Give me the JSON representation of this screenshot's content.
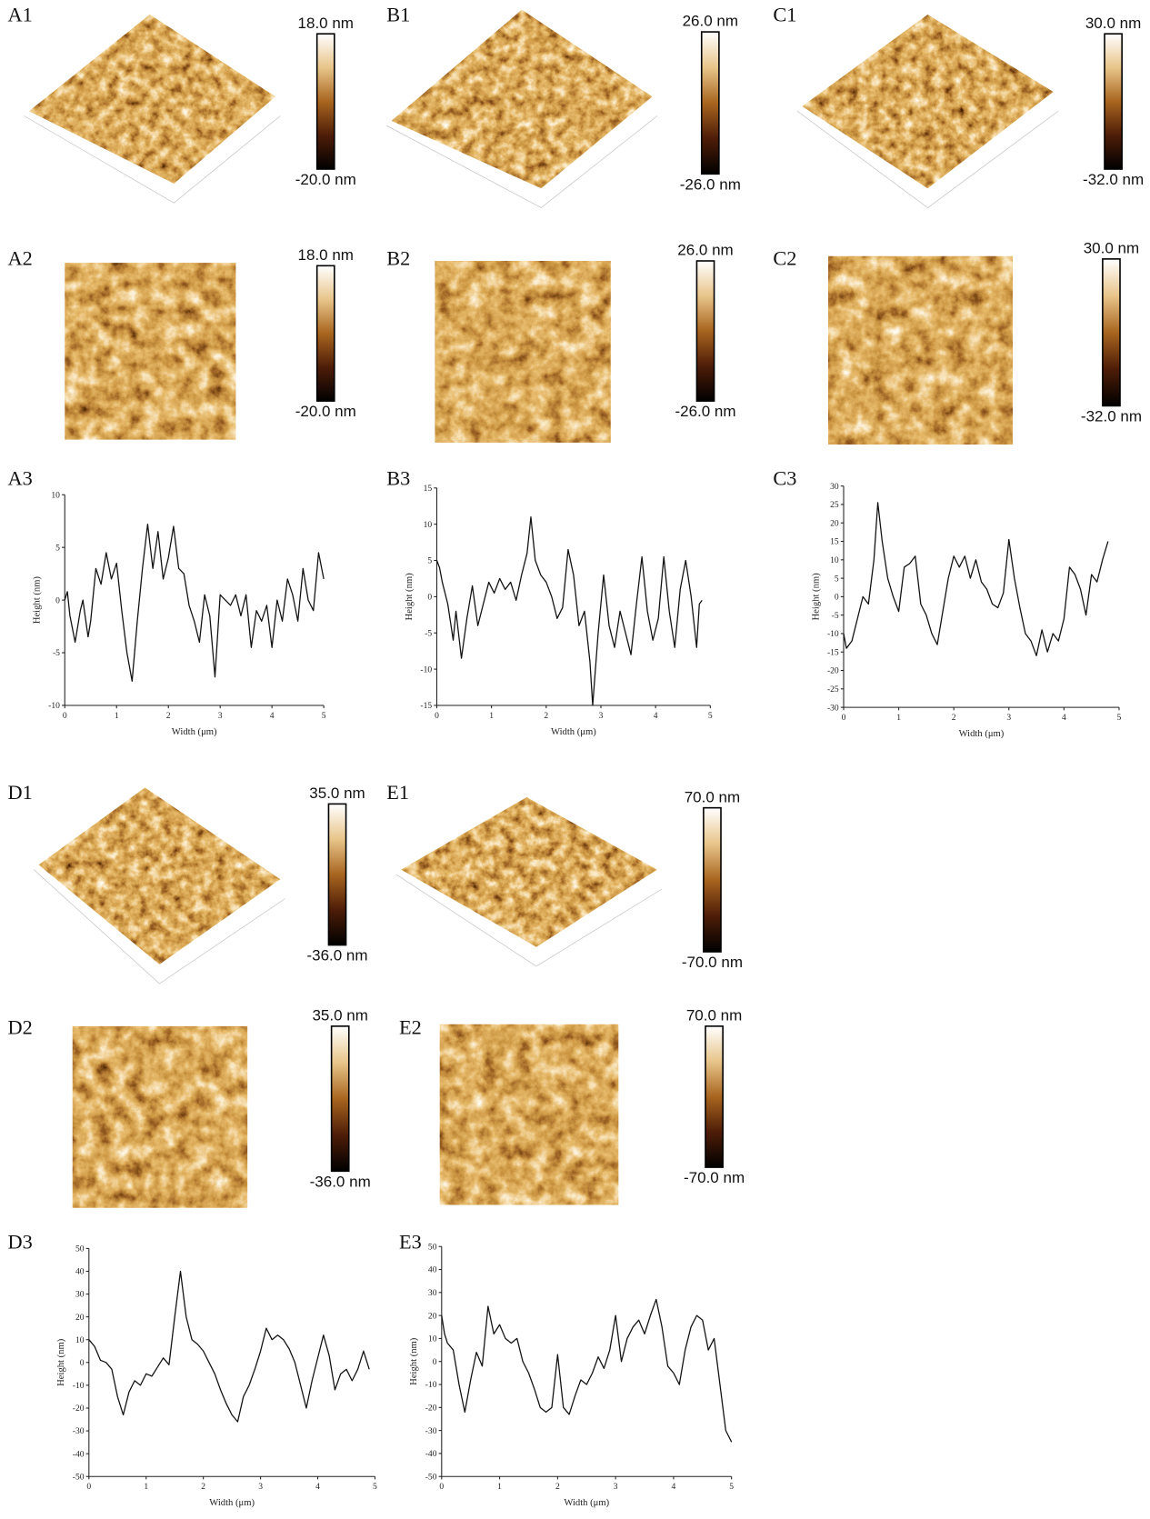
{
  "panels": [
    {
      "label": "A1",
      "kind": "3d",
      "scale_max": "18.0 nm",
      "scale_min": "-20.0 nm"
    },
    {
      "label": "B1",
      "kind": "3d",
      "scale_max": "26.0 nm",
      "scale_min": "-26.0 nm"
    },
    {
      "label": "C1",
      "kind": "3d",
      "scale_max": "30.0 nm",
      "scale_min": "-32.0 nm"
    },
    {
      "label": "A2",
      "kind": "2d",
      "scale_max": "18.0 nm",
      "scale_min": "-20.0 nm"
    },
    {
      "label": "B2",
      "kind": "2d",
      "scale_max": "26.0 nm",
      "scale_min": "-26.0 nm"
    },
    {
      "label": "C2",
      "kind": "2d",
      "scale_max": "30.0 nm",
      "scale_min": "-32.0 nm"
    },
    {
      "label": "D1",
      "kind": "3d",
      "scale_max": "35.0 nm",
      "scale_min": "-36.0 nm"
    },
    {
      "label": "E1",
      "kind": "3d",
      "scale_max": "70.0 nm",
      "scale_min": "-70.0 nm"
    },
    {
      "label": "D2",
      "kind": "2d",
      "scale_max": "35.0 nm",
      "scale_min": "-36.0 nm"
    },
    {
      "label": "E2",
      "kind": "2d",
      "scale_max": "70.0 nm",
      "scale_min": "-70.0 nm"
    }
  ],
  "chart_data": [
    {
      "type": "line",
      "label": "A3",
      "xlabel": "Width (μm)",
      "ylabel": "Height (nm)",
      "color": "#111111",
      "x": [
        0,
        0.05,
        0.1,
        0.2,
        0.3,
        0.35,
        0.45,
        0.5,
        0.6,
        0.7,
        0.8,
        0.9,
        1.0,
        1.1,
        1.2,
        1.3,
        1.4,
        1.5,
        1.6,
        1.7,
        1.8,
        1.9,
        2.0,
        2.1,
        2.2,
        2.3,
        2.4,
        2.5,
        2.6,
        2.7,
        2.8,
        2.9,
        3.0,
        3.1,
        3.2,
        3.3,
        3.4,
        3.5,
        3.6,
        3.7,
        3.8,
        3.9,
        4.0,
        4.1,
        4.2,
        4.3,
        4.4,
        4.5,
        4.6,
        4.7,
        4.8,
        4.9,
        5.0
      ],
      "values": [
        0,
        0.8,
        -1.5,
        -4,
        -1,
        0,
        -3.5,
        -2,
        3,
        1.5,
        4.5,
        2,
        3.5,
        -1,
        -5,
        -7.7,
        -2,
        3,
        7.2,
        3,
        6.5,
        2,
        4,
        7,
        3,
        2.5,
        -0.5,
        -2,
        -4,
        0.5,
        -1.5,
        -7.3,
        0.5,
        0,
        -0.5,
        0.5,
        -1.5,
        0.5,
        -4.5,
        -1,
        -2,
        -0.5,
        -4.5,
        0,
        -2,
        2,
        0.5,
        -2,
        3,
        0,
        -1,
        4.5,
        2
      ],
      "xlim": [
        0,
        5
      ],
      "xticks": [
        0,
        1,
        2,
        3,
        4,
        5
      ],
      "ylim": [
        -10,
        10
      ],
      "yticks": [
        -10,
        -5,
        0,
        5,
        10
      ]
    },
    {
      "type": "line",
      "label": "B3",
      "xlabel": "Width (μm)",
      "ylabel": "Height (nm)",
      "color": "#111111",
      "x": [
        0,
        0.05,
        0.1,
        0.2,
        0.3,
        0.35,
        0.45,
        0.55,
        0.65,
        0.75,
        0.85,
        0.95,
        1.05,
        1.15,
        1.25,
        1.35,
        1.45,
        1.55,
        1.65,
        1.72,
        1.8,
        1.9,
        2.0,
        2.1,
        2.2,
        2.3,
        2.4,
        2.5,
        2.6,
        2.7,
        2.8,
        2.85,
        2.95,
        3.05,
        3.15,
        3.25,
        3.35,
        3.45,
        3.55,
        3.65,
        3.75,
        3.85,
        3.95,
        4.05,
        4.15,
        4.25,
        4.35,
        4.45,
        4.55,
        4.65,
        4.75,
        4.8,
        4.85
      ],
      "values": [
        5,
        4,
        2,
        -1,
        -6,
        -2,
        -8.5,
        -3,
        1.5,
        -4,
        -1,
        2,
        0.5,
        2.5,
        1,
        2,
        -0.5,
        3,
        6,
        11,
        5,
        3,
        2,
        0,
        -3,
        -1.5,
        6.5,
        3,
        -4,
        -2,
        -9,
        -15,
        -5,
        3,
        -4,
        -7,
        -2,
        -5,
        -8,
        -1,
        5.5,
        -2,
        -6,
        -3,
        5.5,
        -2,
        -7,
        1,
        5,
        0,
        -7,
        -1,
        -0.5
      ],
      "xlim": [
        0,
        5
      ],
      "xticks": [
        0,
        1,
        2,
        3,
        4,
        5
      ],
      "ylim": [
        -15,
        15
      ],
      "yticks": [
        -15,
        -10,
        -5,
        0,
        5,
        10,
        15
      ]
    },
    {
      "type": "line",
      "label": "C3",
      "xlabel": "Width (μm)",
      "ylabel": "Height (nm)",
      "color": "#111111",
      "x": [
        0,
        0.05,
        0.15,
        0.25,
        0.35,
        0.45,
        0.55,
        0.62,
        0.7,
        0.8,
        0.9,
        1.0,
        1.1,
        1.2,
        1.3,
        1.4,
        1.5,
        1.6,
        1.7,
        1.8,
        1.9,
        2.0,
        2.1,
        2.2,
        2.3,
        2.4,
        2.5,
        2.6,
        2.7,
        2.8,
        2.9,
        3.0,
        3.1,
        3.2,
        3.3,
        3.4,
        3.5,
        3.6,
        3.7,
        3.8,
        3.9,
        4.0,
        4.1,
        4.2,
        4.3,
        4.4,
        4.5,
        4.6,
        4.7,
        4.8
      ],
      "values": [
        -10,
        -14,
        -12,
        -6,
        0,
        -2,
        10,
        25.5,
        15,
        5,
        0,
        -4,
        8,
        9,
        11,
        -2,
        -5,
        -10,
        -13,
        -4,
        5,
        11,
        8,
        11,
        5,
        10,
        4,
        2,
        -2,
        -3,
        1,
        15.5,
        5,
        -3,
        -10,
        -12,
        -16,
        -9,
        -15,
        -10,
        -12,
        -6,
        8,
        6,
        2,
        -5,
        6,
        4,
        10,
        15
      ],
      "xlim": [
        0,
        5
      ],
      "xticks": [
        0,
        1,
        2,
        3,
        4,
        5
      ],
      "ylim": [
        -30,
        30
      ],
      "yticks": [
        -30,
        -25,
        -20,
        -15,
        -10,
        -5,
        0,
        5,
        10,
        15,
        20,
        25,
        30
      ]
    },
    {
      "type": "line",
      "label": "D3",
      "xlabel": "Width (μm)",
      "ylabel": "Height (nm)",
      "color": "#111111",
      "x": [
        0,
        0.1,
        0.2,
        0.3,
        0.4,
        0.5,
        0.6,
        0.7,
        0.8,
        0.9,
        1.0,
        1.1,
        1.2,
        1.3,
        1.4,
        1.5,
        1.6,
        1.7,
        1.8,
        1.9,
        2.0,
        2.1,
        2.2,
        2.3,
        2.4,
        2.5,
        2.6,
        2.7,
        2.8,
        2.9,
        3.0,
        3.1,
        3.2,
        3.3,
        3.4,
        3.5,
        3.6,
        3.7,
        3.8,
        3.9,
        4.0,
        4.1,
        4.2,
        4.3,
        4.4,
        4.5,
        4.6,
        4.7,
        4.8,
        4.9
      ],
      "values": [
        10,
        7,
        1,
        0,
        -3,
        -15,
        -23,
        -13,
        -8,
        -10,
        -5,
        -6,
        -2,
        2,
        -1,
        20,
        40,
        20,
        10,
        8,
        5,
        0,
        -5,
        -12,
        -18,
        -23,
        -26,
        -15,
        -10,
        -3,
        5,
        15,
        10,
        12,
        10,
        6,
        0,
        -10,
        -20,
        -8,
        2,
        12,
        3,
        -12,
        -5,
        -3,
        -8,
        -3,
        5,
        -3
      ],
      "xlim": [
        0,
        5
      ],
      "xticks": [
        0,
        1,
        2,
        3,
        4,
        5
      ],
      "ylim": [
        -50,
        50
      ],
      "yticks": [
        -50,
        -40,
        -30,
        -20,
        -10,
        0,
        10,
        20,
        30,
        40,
        50
      ]
    },
    {
      "type": "line",
      "label": "E3",
      "xlabel": "Width (μm)",
      "ylabel": "Height (nm)",
      "color": "#111111",
      "x": [
        0,
        0.05,
        0.1,
        0.2,
        0.3,
        0.4,
        0.5,
        0.6,
        0.7,
        0.8,
        0.9,
        1.0,
        1.1,
        1.2,
        1.3,
        1.4,
        1.5,
        1.6,
        1.7,
        1.8,
        1.9,
        2.0,
        2.1,
        2.2,
        2.3,
        2.4,
        2.5,
        2.6,
        2.7,
        2.8,
        2.9,
        3.0,
        3.1,
        3.2,
        3.3,
        3.4,
        3.5,
        3.6,
        3.7,
        3.8,
        3.9,
        4.0,
        4.1,
        4.2,
        4.3,
        4.4,
        4.5,
        4.6,
        4.7,
        4.8,
        4.9,
        5.0
      ],
      "values": [
        20,
        12,
        8,
        5,
        -10,
        -22,
        -8,
        4,
        -2,
        24,
        12,
        16,
        10,
        8,
        10,
        0,
        -5,
        -12,
        -20,
        -22,
        -20,
        3,
        -20,
        -23,
        -15,
        -8,
        -10,
        -5,
        2,
        -3,
        5,
        20,
        0,
        10,
        15,
        18,
        12,
        20,
        27,
        15,
        -2,
        -5,
        -10,
        5,
        15,
        20,
        18,
        5,
        10,
        -10,
        -30,
        -35
      ],
      "xlim": [
        0,
        5
      ],
      "xticks": [
        0,
        1,
        2,
        3,
        4,
        5
      ],
      "ylim": [
        -50,
        50
      ],
      "yticks": [
        -50,
        -40,
        -30,
        -20,
        -10,
        0,
        10,
        20,
        30,
        40,
        50
      ]
    }
  ]
}
